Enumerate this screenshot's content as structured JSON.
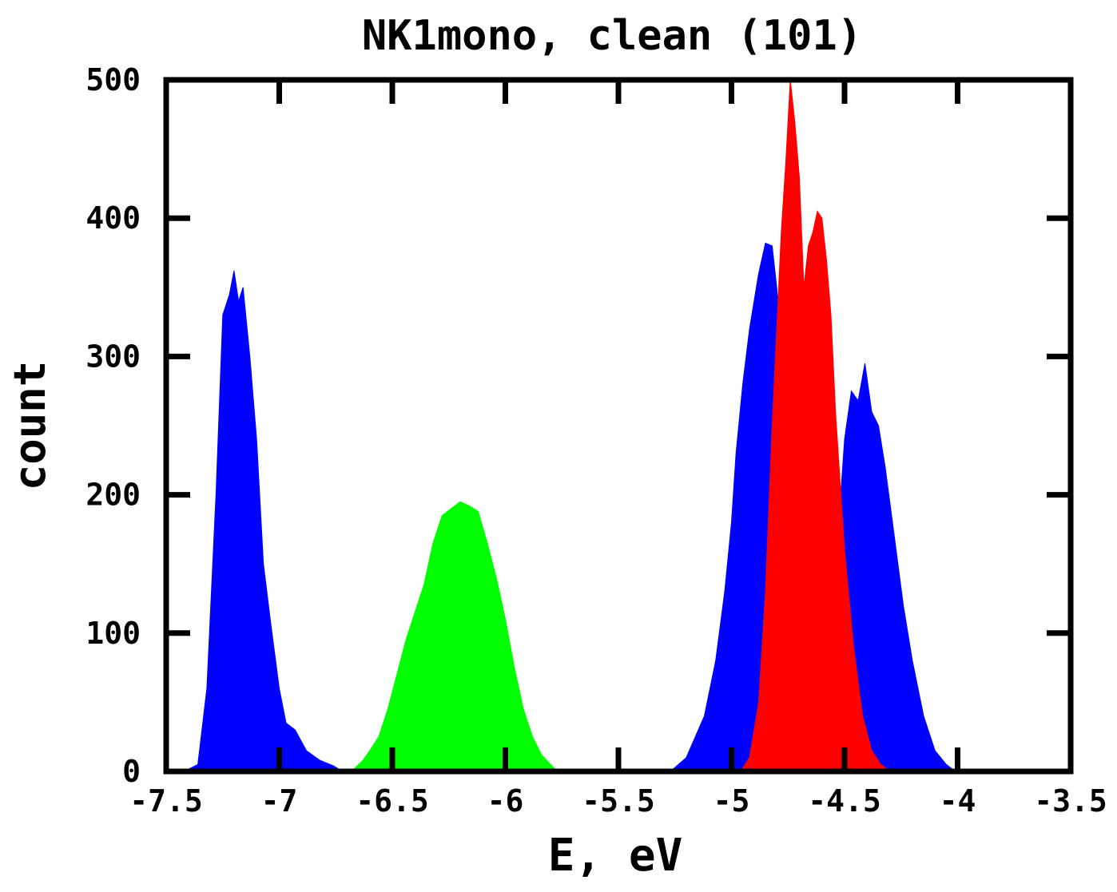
{
  "chart_data": {
    "type": "area",
    "title": "NK1mono, clean (101)",
    "xlabel": "E, eV",
    "ylabel": "count",
    "xlim": [
      -7.5,
      -3.5
    ],
    "ylim": [
      0,
      500
    ],
    "xticks": [
      -7.5,
      -7,
      -6.5,
      -6,
      -5.5,
      -5,
      -4.5,
      -4,
      -3.5
    ],
    "xtick_labels": [
      "-7.5",
      "-7",
      "-6.5",
      "-6",
      "-5.5",
      "-5",
      "-4.5",
      "-4",
      "-3.5"
    ],
    "yticks": [
      0,
      100,
      200,
      300,
      400,
      500
    ],
    "ytick_labels": [
      "0",
      "100",
      "200",
      "300",
      "400",
      "500"
    ],
    "grid": false,
    "series": [
      {
        "color": "#0000ff",
        "x": [
          -7.42,
          -7.36,
          -7.32,
          -7.28,
          -7.25,
          -7.22,
          -7.2,
          -7.18,
          -7.16,
          -7.13,
          -7.1,
          -7.07,
          -7.04,
          -7.0,
          -6.97,
          -6.93,
          -6.88,
          -6.82,
          -6.76,
          -6.72
        ],
        "y": [
          0,
          5,
          60,
          200,
          330,
          345,
          362,
          340,
          350,
          300,
          240,
          150,
          110,
          60,
          35,
          30,
          15,
          8,
          4,
          0
        ]
      },
      {
        "color": "#0000ff",
        "x": [
          -5.27,
          -5.2,
          -5.12,
          -5.07,
          -5.03,
          -5.0,
          -4.98,
          -4.95,
          -4.92,
          -4.88,
          -4.85,
          -4.82,
          -4.8,
          -4.75,
          -4.7,
          -4.65,
          -4.6,
          -4.55,
          -4.5,
          -4.47,
          -4.44,
          -4.41,
          -4.38,
          -4.35,
          -4.32,
          -4.28,
          -4.24,
          -4.2,
          -4.15,
          -4.1,
          -4.05,
          -4.01
        ],
        "y": [
          0,
          10,
          40,
          80,
          130,
          180,
          230,
          280,
          320,
          360,
          382,
          380,
          350,
          250,
          160,
          100,
          80,
          120,
          240,
          275,
          268,
          295,
          260,
          250,
          220,
          170,
          120,
          80,
          40,
          15,
          5,
          0
        ]
      },
      {
        "color": "#00ff00",
        "x": [
          -6.68,
          -6.63,
          -6.6,
          -6.56,
          -6.52,
          -6.48,
          -6.44,
          -6.4,
          -6.36,
          -6.32,
          -6.28,
          -6.24,
          -6.2,
          -6.16,
          -6.12,
          -6.08,
          -6.04,
          -6.0,
          -5.96,
          -5.92,
          -5.88,
          -5.84,
          -5.8,
          -5.77
        ],
        "y": [
          0,
          8,
          15,
          25,
          45,
          70,
          95,
          115,
          135,
          165,
          185,
          190,
          195,
          192,
          188,
          165,
          140,
          110,
          75,
          45,
          25,
          12,
          5,
          0
        ]
      },
      {
        "color": "#ff0000",
        "x": [
          -4.96,
          -4.92,
          -4.88,
          -4.85,
          -4.82,
          -4.8,
          -4.78,
          -4.76,
          -4.74,
          -4.72,
          -4.7,
          -4.68,
          -4.66,
          -4.64,
          -4.62,
          -4.6,
          -4.58,
          -4.56,
          -4.54,
          -4.5,
          -4.46,
          -4.42,
          -4.38,
          -4.34,
          -4.3
        ],
        "y": [
          0,
          10,
          50,
          130,
          250,
          320,
          390,
          440,
          500,
          470,
          430,
          350,
          380,
          390,
          405,
          400,
          370,
          330,
          260,
          160,
          90,
          40,
          15,
          5,
          0
        ]
      }
    ]
  }
}
